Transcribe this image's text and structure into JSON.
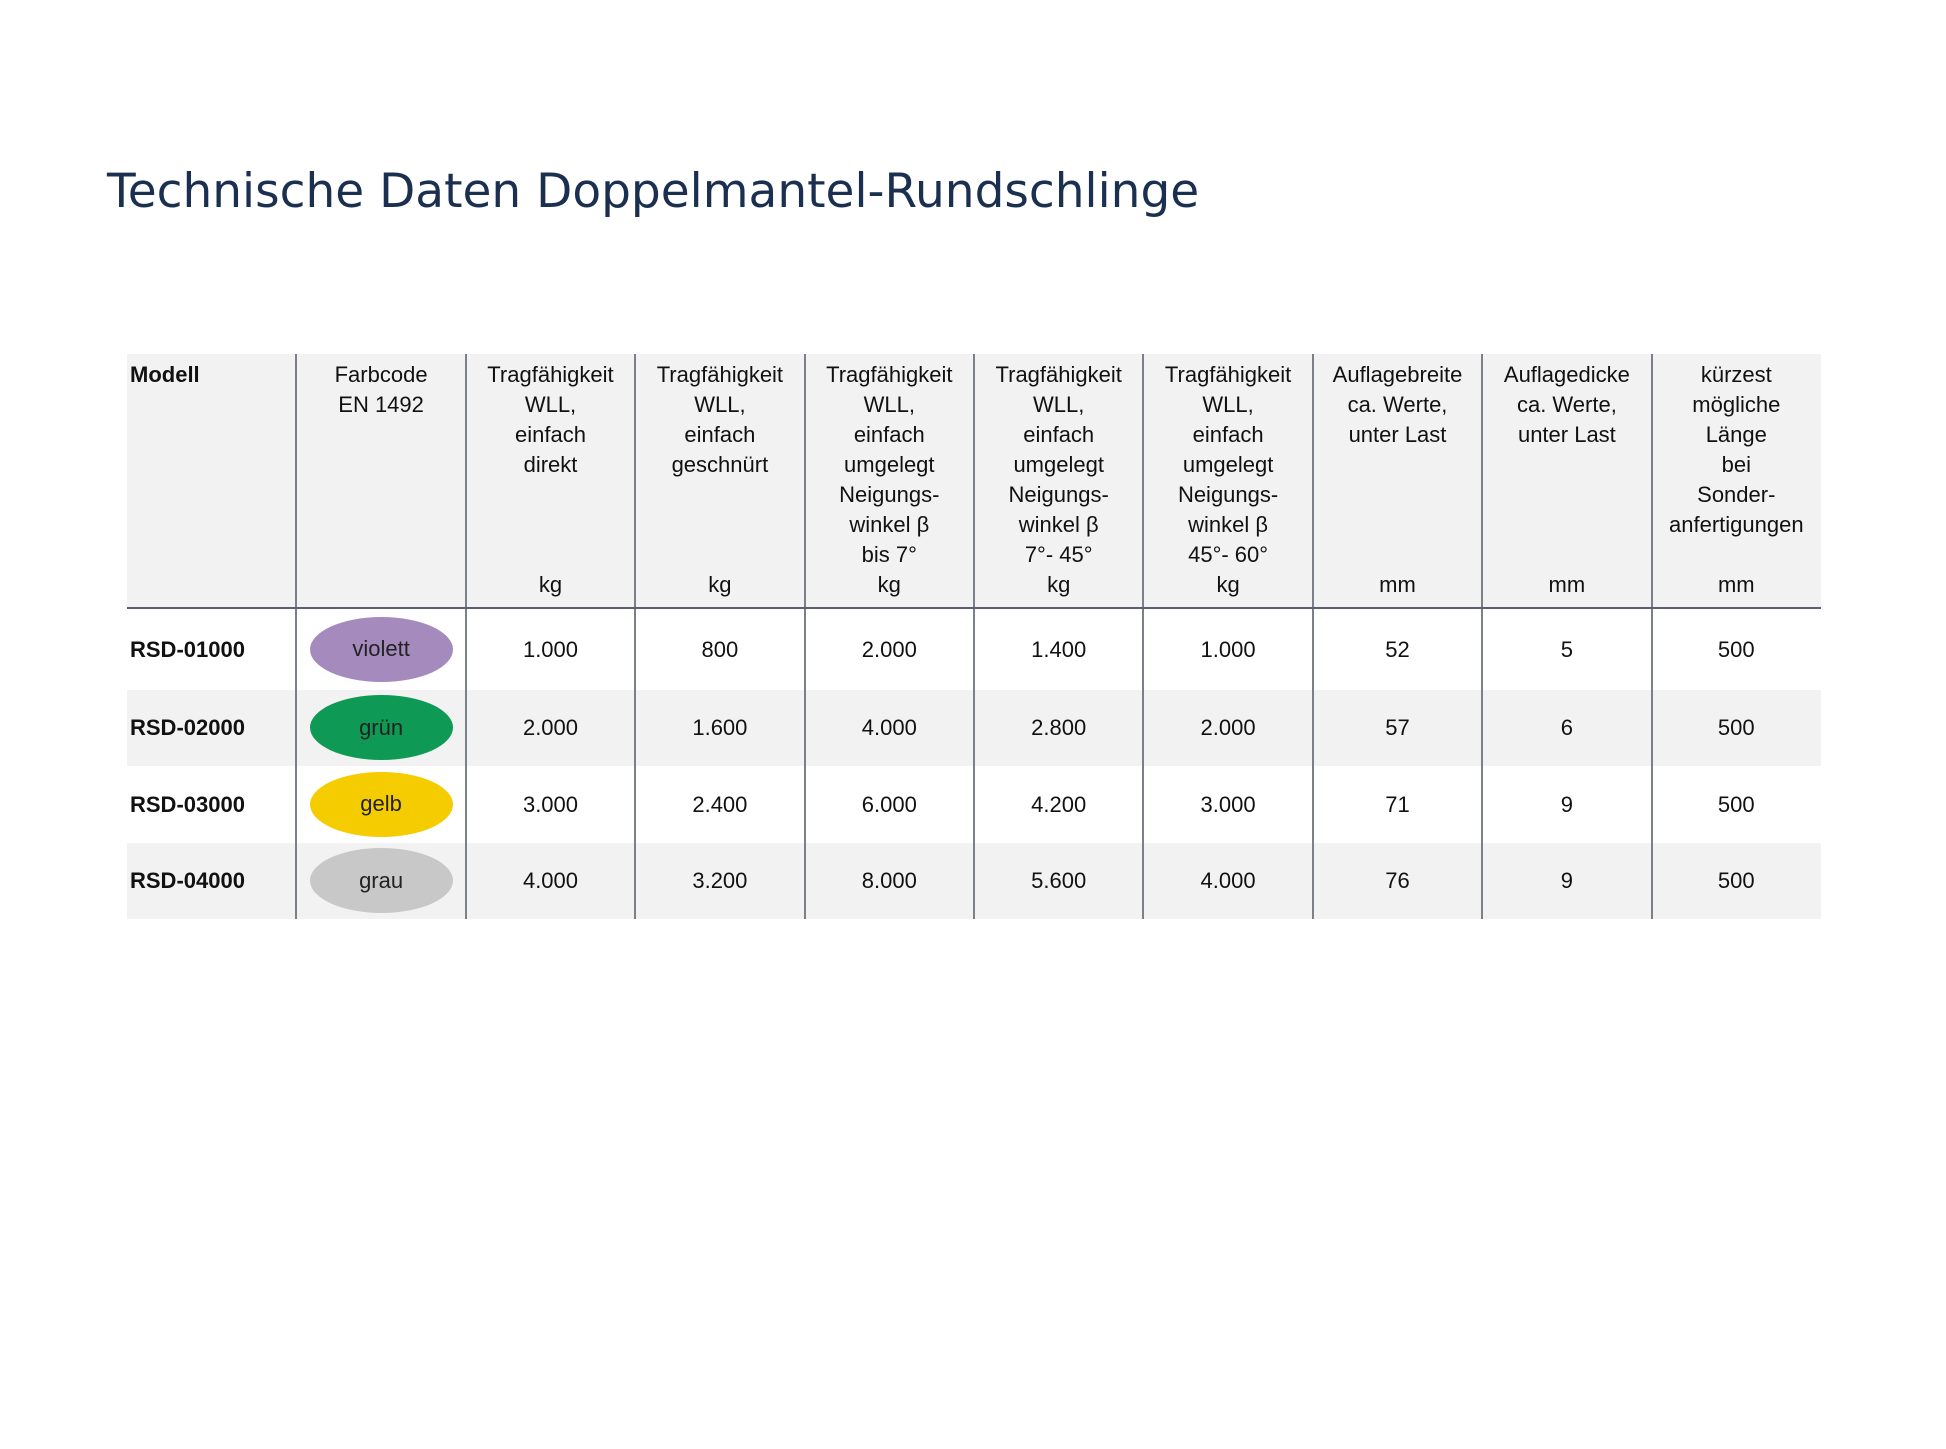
{
  "title": "Technische Daten Doppelmantel-Rundschlinge",
  "table": {
    "header": [
      {
        "label": "Modell"
      },
      {
        "label": "Farbcode\nEN 1492"
      },
      {
        "label": "Tragfähigkeit\nWLL,\neinfach\ndirekt",
        "unit": "kg"
      },
      {
        "label": "Tragfähigkeit\nWLL,\neinfach\ngeschnürt",
        "unit": "kg"
      },
      {
        "label": "Tragfähigkeit\nWLL,\neinfach\numgelegt\nNeigungs-\nwinkel β\nbis 7°",
        "unit": "kg"
      },
      {
        "label": "Tragfähigkeit\nWLL,\neinfach\numgelegt\nNeigungs-\nwinkel β\n7°- 45°",
        "unit": "kg"
      },
      {
        "label": "Tragfähigkeit\nWLL,\neinfach\numgelegt\nNeigungs-\nwinkel β\n45°- 60°",
        "unit": "kg"
      },
      {
        "label": "Auflagebreite\nca. Werte,\nunter Last",
        "unit": "mm"
      },
      {
        "label": "Auflagedicke\nca. Werte,\nunter Last",
        "unit": "mm"
      },
      {
        "label": "kürzest\nmögliche\nLänge\nbei\nSonder-\nanfertigungen",
        "unit": "mm"
      }
    ],
    "rows": [
      {
        "model": "RSD-01000",
        "color": {
          "label": "violett",
          "fill": "#a58bbd"
        },
        "values": [
          "1.000",
          "800",
          "2.000",
          "1.400",
          "1.000",
          "52",
          "5",
          "500"
        ]
      },
      {
        "model": "RSD-02000",
        "color": {
          "label": "grün",
          "fill": "#0e9a55"
        },
        "values": [
          "2.000",
          "1.600",
          "4.000",
          "2.800",
          "2.000",
          "57",
          "6",
          "500"
        ]
      },
      {
        "model": "RSD-03000",
        "color": {
          "label": "gelb",
          "fill": "#f5cc00"
        },
        "values": [
          "3.000",
          "2.400",
          "6.000",
          "4.200",
          "3.000",
          "71",
          "9",
          "500"
        ]
      },
      {
        "model": "RSD-04000",
        "color": {
          "label": "grau",
          "fill": "#c8c8c8"
        },
        "values": [
          "4.000",
          "3.200",
          "8.000",
          "5.600",
          "4.000",
          "76",
          "9",
          "500"
        ]
      }
    ]
  }
}
